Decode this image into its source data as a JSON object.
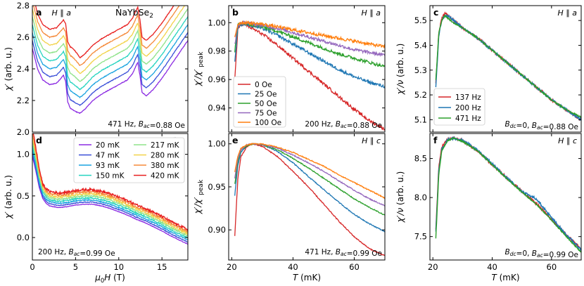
{
  "figure": {
    "compound_label": "NaYbSe",
    "compound_sub": "2"
  },
  "chart_data": [
    {
      "panel": "a",
      "type": "line",
      "field_dir": "H ∥ a",
      "annotation": "471 Hz, B_ac = 0.88 Oe",
      "ylabel": "χ′ (arb. u.)",
      "xlabel": "",
      "xlim": [
        0,
        18
      ],
      "ylim": [
        2.0,
        2.8
      ],
      "xticks": [
        0,
        5,
        10,
        15
      ],
      "yticks": [
        2.0,
        2.2,
        2.4,
        2.6,
        2.8
      ],
      "series_names": [
        "20 mK",
        "47 mK",
        "93 mK",
        "150 mK",
        "217 mK",
        "280 mK",
        "380 mK",
        "420 mK"
      ],
      "offsets": [
        0.0,
        0.05,
        0.1,
        0.15,
        0.2,
        0.25,
        0.3,
        0.35
      ],
      "base_curve": {
        "x": [
          0.0,
          0.6,
          1.2,
          2.0,
          2.8,
          3.3,
          3.6,
          3.85,
          4.1,
          4.4,
          5.0,
          5.5,
          6.0,
          7.0,
          8.0,
          9.0,
          10.0,
          11.0,
          11.6,
          12.0,
          12.2,
          12.45,
          12.7,
          13.2,
          14.0,
          15.0,
          16.0,
          17.0,
          18.0
        ],
        "y": [
          2.53,
          2.4,
          2.33,
          2.3,
          2.31,
          2.34,
          2.36,
          2.32,
          2.19,
          2.15,
          2.13,
          2.12,
          2.14,
          2.2,
          2.24,
          2.27,
          2.3,
          2.33,
          2.37,
          2.42,
          2.44,
          2.36,
          2.25,
          2.23,
          2.27,
          2.34,
          2.42,
          2.5,
          2.58
        ]
      }
    },
    {
      "panel": "b",
      "type": "line",
      "field_dir": "H ∥ a",
      "annotation": "200 Hz, B_ac = 0.88 Oe",
      "ylabel": "χ′/χ′ peak",
      "xlabel": "",
      "xlim": [
        19,
        70
      ],
      "ylim": [
        0.923,
        1.012
      ],
      "xticks": [
        20,
        40,
        60
      ],
      "yticks": [
        0.94,
        0.96,
        0.98,
        1.0
      ],
      "x": [
        21,
        22,
        23,
        25,
        30,
        35,
        40,
        45,
        50,
        55,
        60,
        65,
        70
      ],
      "series": [
        {
          "name": "0 Oe",
          "values": [
            0.96,
            0.995,
            0.999,
            0.998,
            0.992,
            0.984,
            0.975,
            0.966,
            0.957,
            0.948,
            0.939,
            0.931,
            0.925
          ]
        },
        {
          "name": "25 Oe",
          "values": [
            0.972,
            0.997,
            0.999,
            0.999,
            0.996,
            0.991,
            0.985,
            0.979,
            0.973,
            0.967,
            0.962,
            0.958,
            0.955
          ]
        },
        {
          "name": "50 Oe",
          "values": [
            0.98,
            0.998,
            1.0,
            0.999,
            0.997,
            0.994,
            0.99,
            0.986,
            0.982,
            0.978,
            0.975,
            0.972,
            0.969
          ]
        },
        {
          "name": "75 Oe",
          "values": [
            0.985,
            0.998,
            1.0,
            1.0,
            0.998,
            0.996,
            0.993,
            0.99,
            0.987,
            0.984,
            0.981,
            0.979,
            0.977
          ]
        },
        {
          "name": "100 Oe",
          "values": [
            0.99,
            0.999,
            1.0,
            1.0,
            0.999,
            0.997,
            0.995,
            0.993,
            0.991,
            0.989,
            0.987,
            0.985,
            0.983
          ]
        }
      ]
    },
    {
      "panel": "c",
      "type": "line",
      "field_dir": "H ∥ a",
      "annotation": "B_dc = 0, B_ac = 0.88 Oe",
      "ylabel": "χ′/ν (arb. u.)",
      "xlabel": "",
      "xlim": [
        19,
        70
      ],
      "ylim": [
        5.05,
        5.56
      ],
      "xticks": [
        20,
        40,
        60
      ],
      "yticks": [
        5.1,
        5.2,
        5.3,
        5.4,
        5.5
      ],
      "x": [
        21,
        22,
        23,
        24,
        25,
        27,
        30,
        35,
        40,
        45,
        50,
        55,
        60,
        65,
        70
      ],
      "series": [
        {
          "name": "137 Hz",
          "values": [
            5.25,
            5.45,
            5.51,
            5.53,
            5.52,
            5.5,
            5.47,
            5.43,
            5.38,
            5.33,
            5.28,
            5.23,
            5.18,
            5.14,
            5.1
          ]
        },
        {
          "name": "200 Hz",
          "values": [
            5.23,
            5.44,
            5.5,
            5.52,
            5.52,
            5.5,
            5.47,
            5.43,
            5.38,
            5.33,
            5.28,
            5.23,
            5.18,
            5.14,
            5.1
          ]
        },
        {
          "name": "471 Hz",
          "values": [
            5.26,
            5.45,
            5.5,
            5.52,
            5.51,
            5.49,
            5.47,
            5.43,
            5.38,
            5.33,
            5.28,
            5.23,
            5.18,
            5.14,
            5.11
          ]
        }
      ]
    },
    {
      "panel": "d",
      "type": "line",
      "field_dir": "H ∥ c",
      "annotation": "200 Hz, B_ac = 0.99 Oe",
      "ylabel": "χ′ (arb. u.)",
      "xlabel": "μ0H (T)",
      "xlim": [
        0,
        18
      ],
      "ylim": [
        -0.27,
        1.25
      ],
      "xticks": [
        0,
        5,
        10,
        15
      ],
      "yticks": [
        0.0,
        0.5,
        1.0
      ],
      "series_names": [
        "20 mK",
        "47 mK",
        "93 mK",
        "150 mK",
        "217 mK",
        "280 mK",
        "380 mK",
        "420 mK"
      ],
      "offsets": [
        0.0,
        0.025,
        0.05,
        0.075,
        0.1,
        0.125,
        0.15,
        0.175
      ],
      "low_field_peak": [
        1.0,
        1.01,
        1.03,
        1.05,
        1.08,
        1.1,
        1.13,
        1.16
      ],
      "base_curve": {
        "x": [
          0.0,
          0.4,
          0.8,
          1.2,
          1.6,
          2.0,
          3.0,
          4.0,
          5.0,
          6.0,
          7.0,
          8.0,
          9.0,
          10.0,
          11.0,
          12.0,
          13.0,
          14.0,
          15.0,
          16.0,
          17.0,
          18.0
        ],
        "y": [
          0.98,
          0.8,
          0.6,
          0.47,
          0.41,
          0.38,
          0.36,
          0.37,
          0.39,
          0.4,
          0.4,
          0.38,
          0.35,
          0.31,
          0.27,
          0.22,
          0.18,
          0.13,
          0.08,
          0.02,
          -0.03,
          -0.08
        ]
      }
    },
    {
      "panel": "e",
      "type": "line",
      "field_dir": "H ∥ c",
      "annotation": "471 Hz, B_ac = 0.99 Oe",
      "ylabel": "χ′/χ′ peak",
      "xlabel": "T (mK)",
      "xlim": [
        19,
        70
      ],
      "ylim": [
        0.865,
        1.012
      ],
      "xticks": [
        20,
        40,
        60
      ],
      "yticks": [
        0.9,
        0.95,
        1.0
      ],
      "x": [
        21,
        22,
        23,
        25,
        27,
        30,
        35,
        40,
        45,
        50,
        55,
        60,
        65,
        70
      ],
      "series": [
        {
          "name": "0 Oe",
          "values": [
            0.893,
            0.96,
            0.985,
            0.997,
            1.0,
            0.997,
            0.985,
            0.968,
            0.95,
            0.93,
            0.91,
            0.892,
            0.878,
            0.87
          ]
        },
        {
          "name": "25 Oe",
          "values": [
            0.94,
            0.975,
            0.99,
            0.998,
            1.0,
            0.999,
            0.991,
            0.978,
            0.962,
            0.947,
            0.932,
            0.918,
            0.907,
            0.898
          ]
        },
        {
          "name": "50 Oe",
          "values": [
            0.953,
            0.98,
            0.992,
            0.998,
            1.0,
            0.999,
            0.993,
            0.983,
            0.972,
            0.96,
            0.948,
            0.936,
            0.926,
            0.917
          ]
        },
        {
          "name": "75 Oe",
          "values": [
            0.96,
            0.983,
            0.993,
            0.999,
            1.0,
            0.999,
            0.995,
            0.987,
            0.978,
            0.968,
            0.957,
            0.946,
            0.936,
            0.928
          ]
        },
        {
          "name": "100 Oe",
          "values": [
            0.967,
            0.986,
            0.995,
            0.999,
            1.0,
            1.0,
            0.996,
            0.99,
            0.982,
            0.974,
            0.964,
            0.955,
            0.946,
            0.937
          ]
        }
      ]
    },
    {
      "panel": "f",
      "type": "line",
      "field_dir": "H ∥ c",
      "annotation": "B_dc = 0, B_ac = 0.99 Oe",
      "ylabel": "χ′/ν (arb. u.)",
      "xlabel": "T (mK)",
      "xlim": [
        19,
        70
      ],
      "ylim": [
        7.2,
        8.82
      ],
      "xticks": [
        20,
        40,
        60
      ],
      "yticks": [
        7.5,
        8.0,
        8.5
      ],
      "x": [
        21,
        22,
        23,
        25,
        27,
        30,
        35,
        40,
        45,
        50,
        55,
        60,
        65,
        70
      ],
      "series": [
        {
          "name": "137 Hz",
          "values": [
            7.6,
            8.4,
            8.65,
            8.75,
            8.76,
            8.73,
            8.6,
            8.42,
            8.25,
            8.08,
            7.92,
            7.72,
            7.52,
            7.34
          ]
        },
        {
          "name": "200 Hz",
          "values": [
            7.55,
            8.35,
            8.62,
            8.74,
            8.76,
            8.73,
            8.61,
            8.43,
            8.25,
            8.08,
            7.98,
            7.74,
            7.52,
            7.33
          ]
        },
        {
          "name": "471 Hz",
          "values": [
            7.48,
            8.3,
            8.6,
            8.73,
            8.76,
            8.72,
            8.6,
            8.42,
            8.24,
            8.07,
            7.91,
            7.71,
            7.5,
            7.3
          ]
        }
      ]
    }
  ],
  "legends": {
    "temperatures": [
      "20 mK",
      "47 mK",
      "93 mK",
      "150 mK",
      "217 mK",
      "280 mK",
      "380 mK",
      "420 mK"
    ],
    "fields": [
      "0 Oe",
      "25 Oe",
      "50 Oe",
      "75 Oe",
      "100 Oe"
    ],
    "frequencies": [
      "137 Hz",
      "200 Hz",
      "471 Hz"
    ]
  },
  "colors": {
    "temperatures": [
      "#8b2be2",
      "#3a4fd8",
      "#1aa3e0",
      "#26d4c0",
      "#8fe38a",
      "#f2d34a",
      "#f58a3a",
      "#e81f1f"
    ],
    "fields": [
      "#d62728",
      "#1f77b4",
      "#2ca02c",
      "#9467bd",
      "#ff7f0e"
    ],
    "frequencies": [
      "#d62728",
      "#1f77b4",
      "#2ca02c"
    ]
  }
}
